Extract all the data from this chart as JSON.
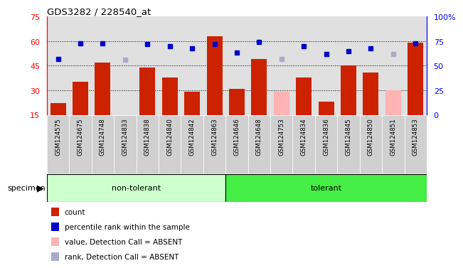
{
  "title": "GDS3282 / 228540_at",
  "samples": [
    "GSM124575",
    "GSM124675",
    "GSM124748",
    "GSM124833",
    "GSM124838",
    "GSM124840",
    "GSM124842",
    "GSM124863",
    "GSM124646",
    "GSM124648",
    "GSM124753",
    "GSM124834",
    "GSM124836",
    "GSM124845",
    "GSM124850",
    "GSM124851",
    "GSM124853"
  ],
  "count_values": [
    22,
    35,
    47,
    null,
    44,
    38,
    29,
    63,
    31,
    49,
    null,
    38,
    23,
    45,
    41,
    null,
    59
  ],
  "count_absent": [
    null,
    null,
    null,
    15,
    null,
    null,
    null,
    null,
    null,
    null,
    29,
    null,
    null,
    null,
    null,
    30,
    null
  ],
  "rank_values": [
    57,
    73,
    73,
    null,
    72,
    70,
    68,
    72,
    63,
    74,
    null,
    70,
    62,
    65,
    68,
    null,
    73
  ],
  "rank_absent": [
    null,
    null,
    null,
    56,
    null,
    null,
    null,
    null,
    null,
    null,
    57,
    null,
    null,
    null,
    null,
    62,
    null
  ],
  "n_nontolerant": 8,
  "bar_color": "#cc2200",
  "bar_absent_color": "#ffb3b3",
  "dot_color": "#0000cc",
  "dot_absent_color": "#aaaacc",
  "ylim_left": [
    15,
    75
  ],
  "ylim_right": [
    0,
    100
  ],
  "yticks_left": [
    15,
    30,
    45,
    60,
    75
  ],
  "yticks_right": [
    0,
    25,
    50,
    75,
    100
  ],
  "background_plot": "#e0e0e0",
  "background_nontol": "#ccffcc",
  "background_tol": "#44ee44",
  "label_cell_bg": "#d0d0d0",
  "specimen_label": "specimen",
  "nontol_label": "non-tolerant",
  "tol_label": "tolerant",
  "legend_items": [
    {
      "color": "#cc2200",
      "label": "count"
    },
    {
      "color": "#0000cc",
      "label": "percentile rank within the sample"
    },
    {
      "color": "#ffb3b3",
      "label": "value, Detection Call = ABSENT"
    },
    {
      "color": "#aaaacc",
      "label": "rank, Detection Call = ABSENT"
    }
  ]
}
